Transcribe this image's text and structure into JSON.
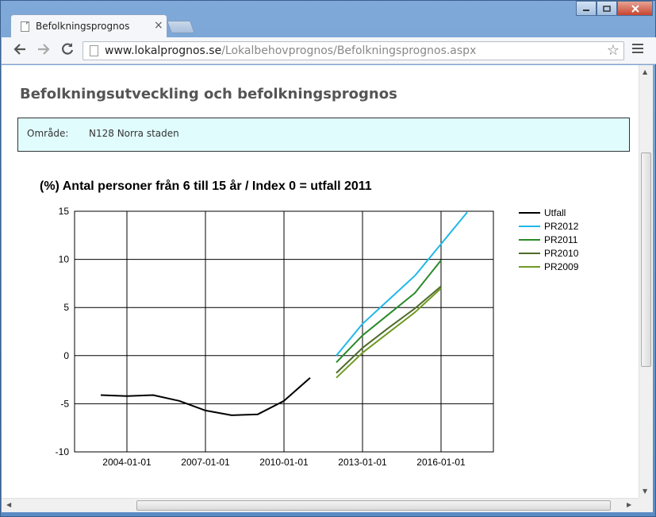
{
  "browser": {
    "tab_title": "Befolkningsprognos",
    "tab_close": "×",
    "url_domain": "www.lokalprognos.se",
    "url_path": "/Lokalbehovprognos/Befolkningsprognos.aspx",
    "back_icon": "arrow-left",
    "forward_icon": "arrow-right",
    "reload_icon": "reload",
    "bookmark_icon": "star",
    "menu_icon": "hamburger"
  },
  "page": {
    "heading": "Befolkningsutveckling och befolkningsprognos",
    "area_label": "Område:",
    "area_value": "N128 Norra staden"
  },
  "chart_data": {
    "type": "line",
    "title": "(%) Antal personer från 6 till 15 år / Index 0 = utfall 2011",
    "xlabel": "",
    "ylabel": "",
    "ylim": [
      -10,
      15
    ],
    "yticks": [
      -10,
      -5,
      0,
      5,
      10,
      15
    ],
    "xticks": [
      "2004-01-01",
      "2007-01-01",
      "2010-01-01",
      "2013-01-01",
      "2016-01-01"
    ],
    "xtick_years": [
      2004,
      2007,
      2010,
      2013,
      2016
    ],
    "xlim": [
      2002.0,
      2018.0
    ],
    "grid": true,
    "legend_position": "right",
    "series": [
      {
        "name": "Utfall",
        "color": "#000000",
        "x": [
          2003,
          2004,
          2005,
          2006,
          2007,
          2008,
          2009,
          2010,
          2011
        ],
        "y": [
          -4.1,
          -4.2,
          -4.1,
          -4.7,
          -5.7,
          -6.2,
          -6.1,
          -4.7,
          -2.3
        ]
      },
      {
        "name": "PR2012",
        "color": "#1fb8e8",
        "x": [
          2012,
          2013,
          2014,
          2015,
          2016,
          2017
        ],
        "y": [
          0.0,
          3.3,
          5.8,
          8.3,
          11.6,
          14.9
        ]
      },
      {
        "name": "PR2011",
        "color": "#2a8a2a",
        "x": [
          2012,
          2013,
          2014,
          2015,
          2016
        ],
        "y": [
          -0.7,
          2.1,
          4.3,
          6.5,
          9.9
        ]
      },
      {
        "name": "PR2010",
        "color": "#4f6b2a",
        "x": [
          2012,
          2013,
          2014,
          2015,
          2016
        ],
        "y": [
          -1.8,
          0.8,
          2.9,
          4.9,
          7.2
        ]
      },
      {
        "name": "PR2009",
        "color": "#6f9a24",
        "x": [
          2012,
          2013,
          2014,
          2015,
          2016
        ],
        "y": [
          -2.3,
          0.3,
          2.4,
          4.5,
          7.0
        ]
      }
    ]
  }
}
